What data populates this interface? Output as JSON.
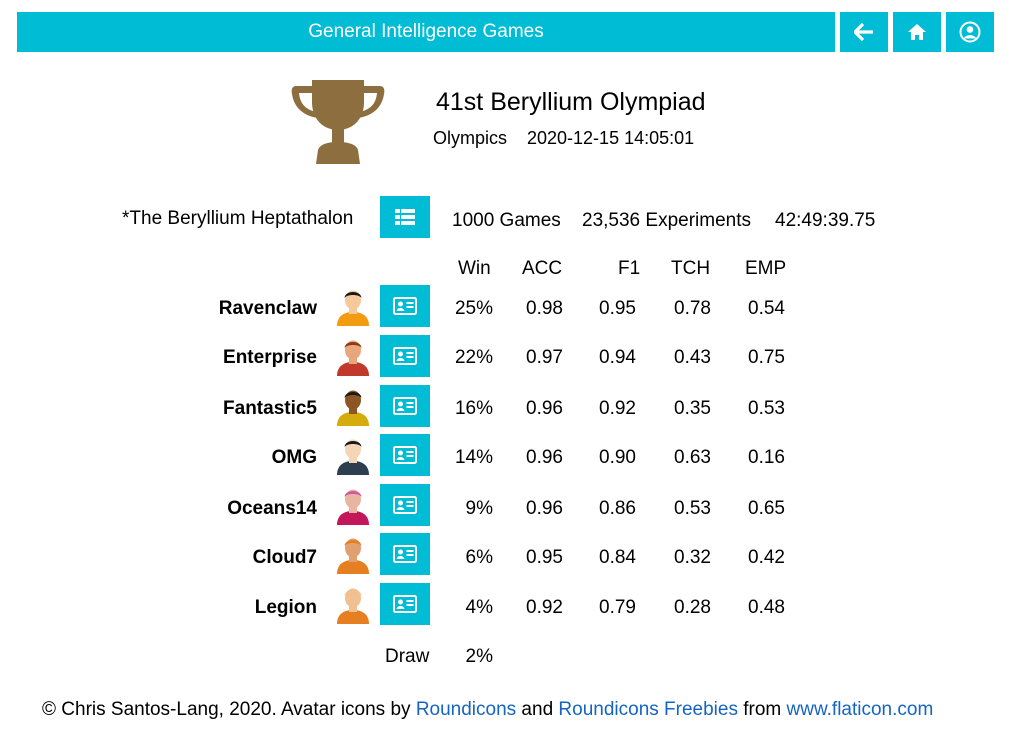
{
  "header": {
    "title": "General Intelligence Games",
    "icons": [
      "back-arrow-icon",
      "home-icon",
      "user-profile-icon"
    ],
    "accent": "#00bcd4"
  },
  "olympiad": {
    "title": "41st Beryllium Olympiad",
    "type": "Olympics",
    "datetime": "2020-12-15 14:05:01",
    "trophy_color": "#8d6e3f"
  },
  "event": {
    "name": "*The Beryllium Heptathalon",
    "games": "1000 Games",
    "experiments": "23,536 Experiments",
    "duration": "42:49:39.75"
  },
  "columns": [
    "Win",
    "ACC",
    "F1",
    "TCH",
    "EMP"
  ],
  "teams": [
    {
      "name": "Ravenclaw",
      "win": "25%",
      "acc": "0.98",
      "f1": "0.95",
      "tch": "0.78",
      "emp": "0.54"
    },
    {
      "name": "Enterprise",
      "win": "22%",
      "acc": "0.97",
      "f1": "0.94",
      "tch": "0.43",
      "emp": "0.75"
    },
    {
      "name": "Fantastic5",
      "win": "16%",
      "acc": "0.96",
      "f1": "0.92",
      "tch": "0.35",
      "emp": "0.53"
    },
    {
      "name": "OMG",
      "win": "14%",
      "acc": "0.96",
      "f1": "0.90",
      "tch": "0.63",
      "emp": "0.16"
    },
    {
      "name": "Oceans14",
      "win": "9%",
      "acc": "0.96",
      "f1": "0.86",
      "tch": "0.53",
      "emp": "0.65"
    },
    {
      "name": "Cloud7",
      "win": "6%",
      "acc": "0.95",
      "f1": "0.84",
      "tch": "0.32",
      "emp": "0.42"
    },
    {
      "name": "Legion",
      "win": "4%",
      "acc": "0.92",
      "f1": "0.79",
      "tch": "0.28",
      "emp": "0.48"
    }
  ],
  "draw": {
    "label": "Draw",
    "value": "2%"
  },
  "footer": {
    "prefix": "© Chris Santos-Lang, 2020. Avatar icons by ",
    "link1": "Roundicons",
    "and": " and ",
    "link2": "Roundicons Freebies",
    "from": " from ",
    "link3": "www.flaticon.com"
  }
}
